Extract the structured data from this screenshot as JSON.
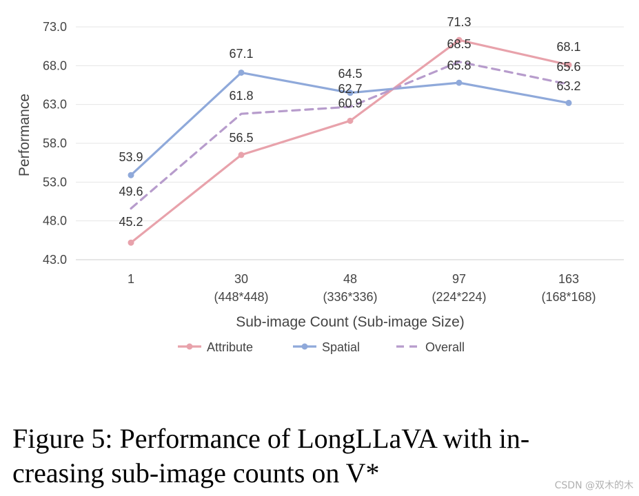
{
  "chart_data": {
    "type": "line",
    "xlabel": "Sub-image Count (Sub-image Size)",
    "ylabel": "Performance",
    "ylim": [
      43.0,
      73.0
    ],
    "yticks": [
      "43.0",
      "48.0",
      "53.0",
      "58.0",
      "63.0",
      "68.0",
      "73.0"
    ],
    "categories": [
      {
        "count": "1",
        "size": ""
      },
      {
        "count": "30",
        "size": "(448*448)"
      },
      {
        "count": "48",
        "size": "(336*336)"
      },
      {
        "count": "97",
        "size": "(224*224)"
      },
      {
        "count": "163",
        "size": "(168*168)"
      }
    ],
    "grid": "horizontal",
    "legend_position": "bottom",
    "series": [
      {
        "name": "Attribute",
        "values": [
          45.2,
          56.5,
          60.9,
          71.3,
          68.1
        ],
        "labels": [
          "45.2",
          "56.5",
          "60.9",
          "71.3",
          "68.1"
        ],
        "color": "#e8a2ab",
        "style": "solid",
        "markers": true
      },
      {
        "name": "Spatial",
        "values": [
          53.9,
          67.1,
          64.5,
          65.8,
          63.2
        ],
        "labels": [
          "53.9",
          "67.1",
          "64.5",
          "65.8",
          "63.2"
        ],
        "color": "#8fa9da",
        "style": "solid",
        "markers": true
      },
      {
        "name": "Overall",
        "values": [
          49.6,
          61.8,
          62.7,
          68.5,
          65.6
        ],
        "labels": [
          "49.6",
          "61.8",
          "62.7",
          "68.5",
          "65.6"
        ],
        "color": "#b79ccc",
        "style": "dashed",
        "markers": false
      }
    ]
  },
  "caption": {
    "line1": "Figure 5: Performance of LongLLaVA with in-",
    "line2": "creasing sub-image counts on V*"
  },
  "watermark": "CSDN @双木的木"
}
